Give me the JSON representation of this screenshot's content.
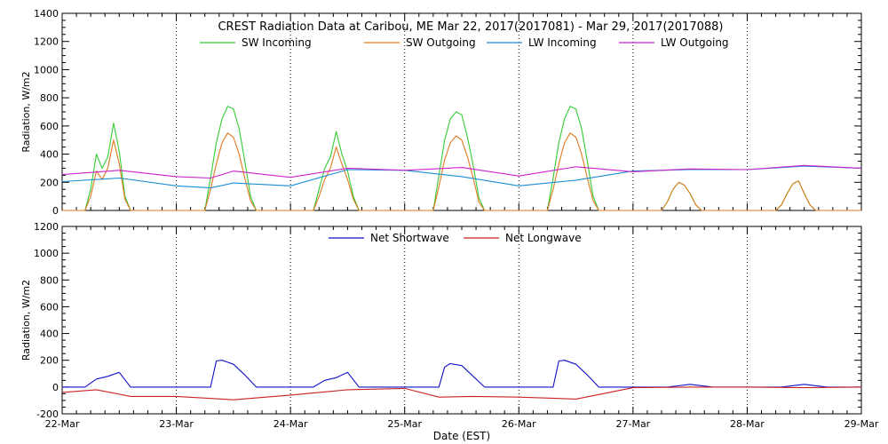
{
  "chart_data": [
    {
      "type": "line",
      "title": "CREST Radiation Data at Caribou, ME   Mar 22, 2017(2017081) - Mar 29, 2017(2017088)",
      "ylabel": "Radiation, W/m2",
      "xlabel": "",
      "ylim": [
        0,
        1400
      ],
      "yticks": [
        0,
        200,
        400,
        600,
        800,
        1000,
        1200,
        1400
      ],
      "xlim": [
        0,
        7
      ],
      "xticks": [
        0,
        1,
        2,
        3,
        4,
        5,
        6,
        7
      ],
      "xtick_labels": [],
      "grid": "vertical dotted",
      "legend": "top",
      "series": [
        {
          "name": "SW Incoming",
          "color": "#33cc33",
          "x": [
            0.0,
            0.2,
            0.25,
            0.3,
            0.35,
            0.4,
            0.45,
            0.5,
            0.55,
            0.6,
            0.65,
            0.7,
            0.75,
            1.0,
            1.25,
            1.3,
            1.35,
            1.4,
            1.45,
            1.5,
            1.55,
            1.6,
            1.65,
            1.7,
            1.75,
            2.0,
            2.2,
            2.25,
            2.3,
            2.35,
            2.4,
            2.45,
            2.5,
            2.55,
            2.6,
            2.65,
            2.7,
            2.75,
            3.0,
            3.25,
            3.3,
            3.35,
            3.4,
            3.45,
            3.5,
            3.55,
            3.6,
            3.65,
            3.7,
            3.75,
            4.0,
            4.25,
            4.3,
            4.35,
            4.4,
            4.45,
            4.5,
            4.55,
            4.6,
            4.65,
            4.7,
            4.75,
            5.0,
            5.25,
            5.3,
            5.35,
            5.4,
            5.45,
            5.5,
            5.55,
            5.6,
            5.65,
            5.7,
            5.75,
            6.0,
            6.25,
            6.3,
            6.35,
            6.4,
            6.45,
            6.5,
            6.55,
            6.6,
            6.65,
            6.7,
            6.75,
            7.0
          ],
          "values": [
            0,
            0,
            150,
            400,
            300,
            380,
            620,
            420,
            100,
            0,
            0,
            0,
            0,
            0,
            0,
            230,
            480,
            650,
            740,
            720,
            580,
            350,
            100,
            0,
            0,
            0,
            0,
            150,
            300,
            380,
            560,
            400,
            280,
            100,
            0,
            0,
            0,
            0,
            0,
            0,
            250,
            500,
            650,
            700,
            680,
            520,
            320,
            90,
            0,
            0,
            0,
            0,
            230,
            480,
            650,
            740,
            720,
            580,
            350,
            100,
            0,
            0,
            0,
            0,
            60,
            150,
            200,
            180,
            120,
            40,
            0,
            0,
            0,
            0,
            0,
            0,
            40,
            120,
            190,
            210,
            120,
            40,
            0,
            0,
            0,
            0,
            0
          ]
        },
        {
          "name": "SW Outgoing",
          "color": "#e07a1f",
          "x": [
            0.0,
            0.2,
            0.25,
            0.3,
            0.35,
            0.4,
            0.45,
            0.5,
            0.55,
            0.6,
            0.65,
            0.7,
            0.75,
            1.0,
            1.25,
            1.3,
            1.35,
            1.4,
            1.45,
            1.5,
            1.55,
            1.6,
            1.65,
            1.7,
            1.75,
            2.0,
            2.2,
            2.25,
            2.3,
            2.35,
            2.4,
            2.45,
            2.5,
            2.55,
            2.6,
            2.65,
            2.7,
            2.75,
            3.0,
            3.25,
            3.3,
            3.35,
            3.4,
            3.45,
            3.5,
            3.55,
            3.6,
            3.65,
            3.7,
            3.75,
            4.0,
            4.25,
            4.3,
            4.35,
            4.4,
            4.45,
            4.5,
            4.55,
            4.6,
            4.65,
            4.7,
            4.75,
            5.0,
            5.25,
            5.3,
            5.35,
            5.4,
            5.45,
            5.5,
            5.55,
            5.6,
            5.65,
            5.7,
            5.75,
            6.0,
            6.25,
            6.3,
            6.35,
            6.4,
            6.45,
            6.5,
            6.55,
            6.6,
            6.65,
            6.7,
            6.75,
            7.0
          ],
          "values": [
            0,
            0,
            100,
            280,
            220,
            300,
            500,
            330,
            80,
            0,
            0,
            0,
            0,
            0,
            0,
            150,
            330,
            480,
            550,
            520,
            400,
            230,
            70,
            0,
            0,
            0,
            0,
            100,
            220,
            300,
            450,
            330,
            220,
            80,
            0,
            0,
            0,
            0,
            0,
            0,
            170,
            360,
            480,
            530,
            500,
            380,
            230,
            60,
            0,
            0,
            0,
            0,
            150,
            330,
            480,
            550,
            520,
            400,
            230,
            70,
            0,
            0,
            0,
            0,
            60,
            150,
            200,
            180,
            120,
            40,
            0,
            0,
            0,
            0,
            0,
            0,
            40,
            120,
            190,
            210,
            120,
            40,
            0,
            0,
            0,
            0,
            0
          ]
        },
        {
          "name": "LW Incoming",
          "color": "#1a8ed6",
          "x": [
            0.0,
            0.5,
            1.0,
            1.3,
            1.5,
            2.0,
            2.5,
            3.0,
            3.5,
            4.0,
            4.5,
            5.0,
            5.5,
            6.0,
            6.5,
            7.0
          ],
          "values": [
            205,
            230,
            175,
            160,
            195,
            175,
            290,
            285,
            240,
            175,
            215,
            280,
            290,
            290,
            315,
            300
          ]
        },
        {
          "name": "LW Outgoing",
          "color": "#cc22cc",
          "x": [
            0.0,
            0.5,
            1.0,
            1.3,
            1.5,
            2.0,
            2.5,
            3.0,
            3.5,
            4.0,
            4.5,
            5.0,
            5.5,
            6.0,
            6.5,
            7.0
          ],
          "values": [
            255,
            285,
            240,
            230,
            280,
            235,
            300,
            285,
            305,
            245,
            310,
            275,
            295,
            290,
            320,
            300
          ]
        }
      ]
    },
    {
      "type": "line",
      "title": "",
      "ylabel": "Radiation, W/m2",
      "xlabel": "Date (EST)",
      "ylim": [
        -200,
        1200
      ],
      "yticks": [
        -200,
        0,
        200,
        400,
        600,
        800,
        1000,
        1200
      ],
      "xlim": [
        0,
        7
      ],
      "xticks": [
        0,
        1,
        2,
        3,
        4,
        5,
        6,
        7
      ],
      "xtick_labels": [
        "22-Mar",
        "23-Mar",
        "24-Mar",
        "25-Mar",
        "26-Mar",
        "27-Mar",
        "28-Mar",
        "29-Mar"
      ],
      "grid": "vertical dotted",
      "legend": "top",
      "series": [
        {
          "name": "Net Shortwave",
          "color": "#1010cc",
          "x": [
            0.0,
            0.2,
            0.3,
            0.4,
            0.5,
            0.6,
            1.0,
            1.3,
            1.35,
            1.4,
            1.5,
            1.6,
            1.7,
            2.0,
            2.2,
            2.3,
            2.4,
            2.5,
            2.6,
            3.0,
            3.3,
            3.35,
            3.4,
            3.5,
            3.6,
            3.7,
            4.0,
            4.3,
            4.35,
            4.4,
            4.5,
            4.6,
            4.7,
            5.0,
            5.3,
            5.5,
            5.7,
            6.0,
            6.3,
            6.5,
            6.7,
            7.0
          ],
          "values": [
            0,
            0,
            60,
            80,
            110,
            0,
            0,
            0,
            195,
            200,
            170,
            90,
            0,
            0,
            0,
            50,
            70,
            110,
            0,
            0,
            0,
            150,
            175,
            160,
            80,
            0,
            0,
            0,
            195,
            200,
            170,
            90,
            0,
            0,
            0,
            20,
            0,
            0,
            0,
            20,
            0,
            0
          ]
        },
        {
          "name": "Net Longwave",
          "color": "#cc2222",
          "x": [
            0.0,
            0.3,
            0.6,
            1.0,
            1.5,
            2.0,
            2.5,
            3.0,
            3.3,
            3.6,
            4.0,
            4.5,
            5.0,
            5.5,
            6.0,
            6.5,
            7.0
          ],
          "values": [
            -40,
            -20,
            -70,
            -70,
            -95,
            -60,
            -20,
            -10,
            -75,
            -70,
            -75,
            -90,
            -5,
            0,
            0,
            -5,
            0
          ]
        }
      ]
    }
  ]
}
